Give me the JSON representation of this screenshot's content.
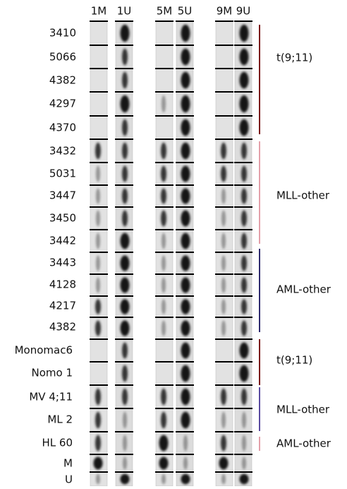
{
  "columns": [
    "1M",
    "1U",
    "5M",
    "5U",
    "9M",
    "9U"
  ],
  "rows": [
    "3410",
    "5066",
    "4382",
    "4297",
    "4370",
    "3432",
    "5031",
    "3447",
    "3450",
    "3442",
    "3443",
    "4128",
    "4217",
    "4382",
    "Monomac6",
    "Nomo 1",
    "MV 4;11",
    "ML 2",
    "HL 60",
    "M",
    "U"
  ],
  "groups": [
    "t(9;11)",
    "MLL-other",
    "AML-other",
    "t(9;11)",
    "MLL-other",
    "AML-other"
  ]
}
